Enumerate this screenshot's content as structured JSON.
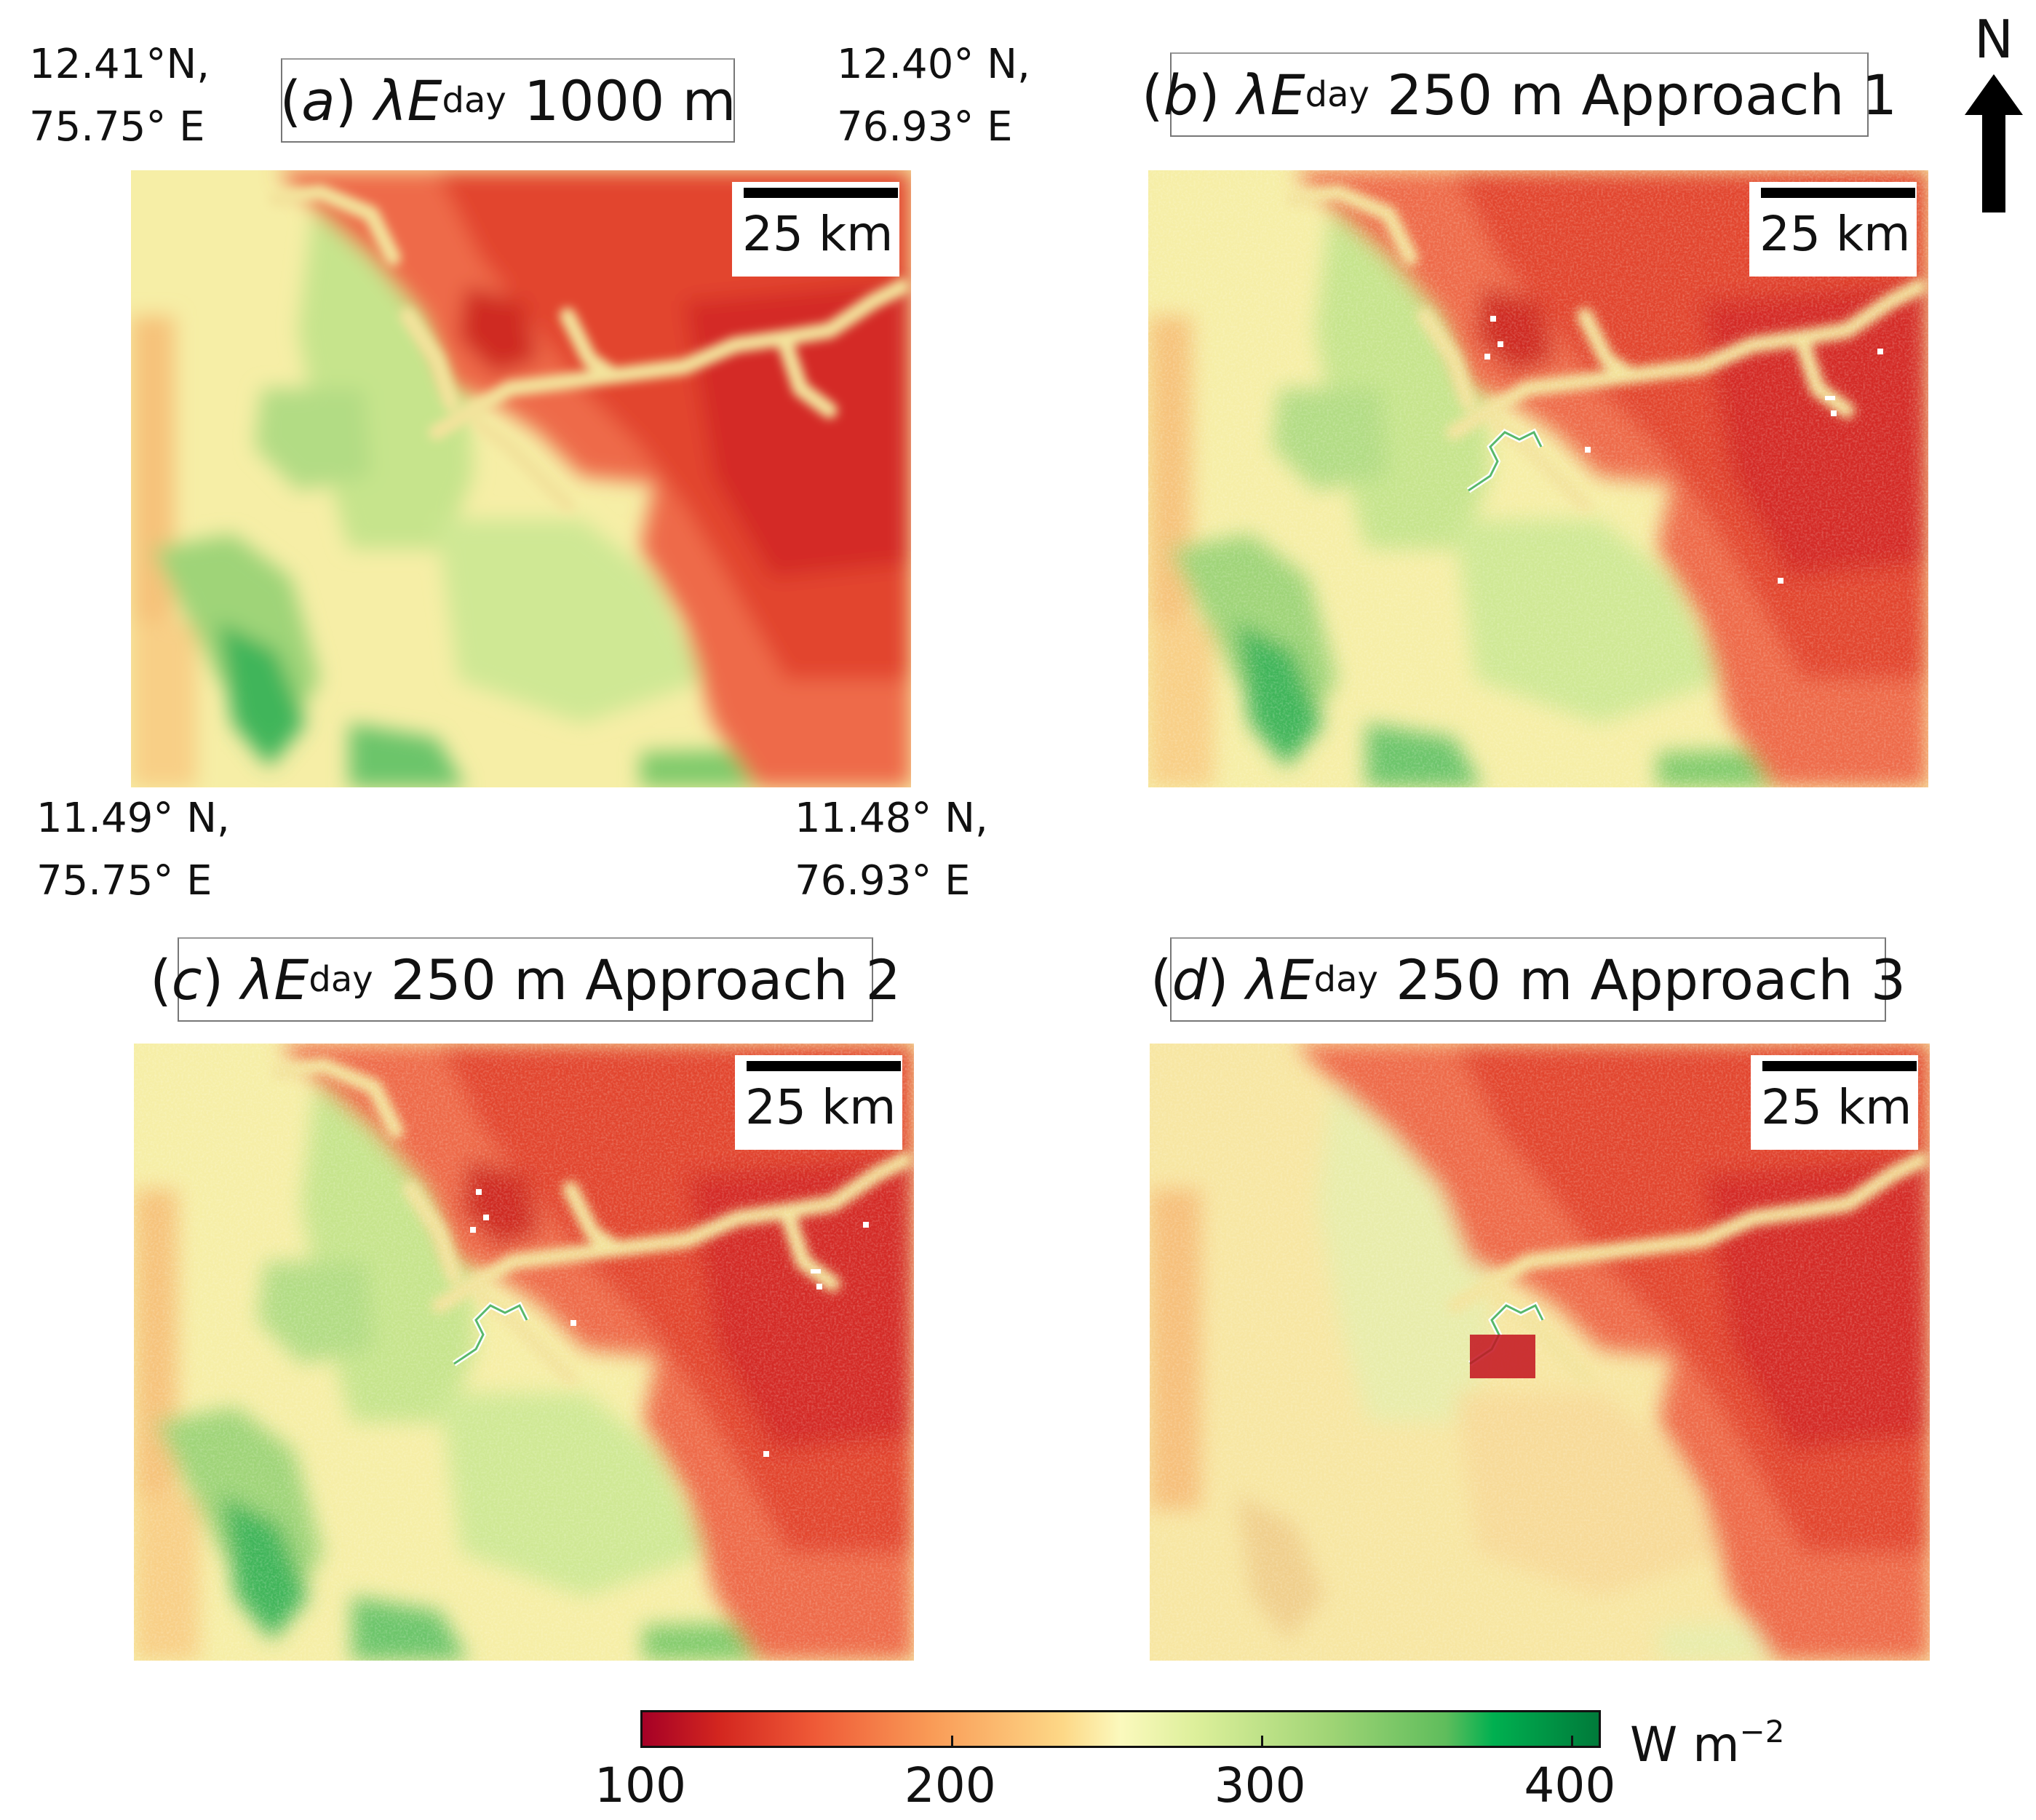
{
  "coordinates": {
    "top_left": "12.41°N,\n75.75° E",
    "top_right": "12.40° N,\n76.93° E",
    "bottom_left": "11.49° N,\n75.75° E",
    "bottom_right": "11.48° N,\n76.93° E"
  },
  "panels": [
    {
      "letter": "a",
      "variable": "λE",
      "subscript": "day",
      "suffix": "1000 m",
      "scale_label": "25 km"
    },
    {
      "letter": "b",
      "variable": "λE",
      "subscript": "day",
      "suffix": "250 m Approach 1",
      "scale_label": "25 km"
    },
    {
      "letter": "c",
      "variable": "λE",
      "subscript": "day",
      "suffix": "250 m Approach 2",
      "scale_label": "25 km"
    },
    {
      "letter": "d",
      "variable": "λE",
      "subscript": "day",
      "suffix": "250 m Approach 3",
      "scale_label": "25 km"
    }
  ],
  "north_arrow": {
    "label": "N"
  },
  "colorbar": {
    "ticks": [
      "100",
      "200",
      "300",
      "400"
    ],
    "min": 100,
    "max": 410,
    "unit": "W m",
    "unit_exponent": "−2",
    "colors": {
      "low": "#a50026",
      "mid": "#fbf9bd",
      "high": "#007a3a"
    }
  }
}
